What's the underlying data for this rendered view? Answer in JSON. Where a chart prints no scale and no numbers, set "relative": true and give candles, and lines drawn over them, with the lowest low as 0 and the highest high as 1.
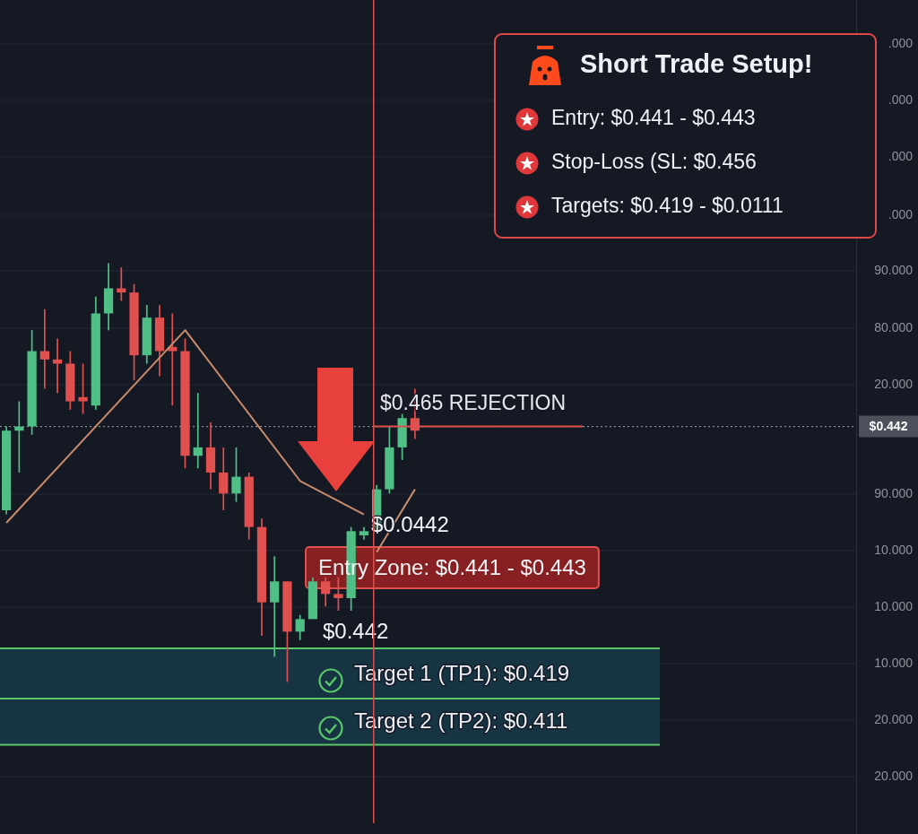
{
  "chart_data": {
    "type": "candlestick",
    "title": "Short Trade Setup!",
    "categories": [
      null,
      null,
      null,
      null,
      null,
      null,
      null,
      null,
      null,
      null,
      null,
      null,
      null,
      null,
      null,
      null,
      null,
      null,
      null,
      null,
      null,
      null,
      null,
      null,
      null,
      null,
      null,
      null,
      null,
      null,
      null,
      null,
      null
    ],
    "ohlc": [
      [
        0.41,
        0.61,
        0.4,
        0.6
      ],
      [
        0.6,
        0.67,
        0.5,
        0.61
      ],
      [
        0.61,
        0.84,
        0.59,
        0.79
      ],
      [
        0.79,
        0.89,
        0.7,
        0.77
      ],
      [
        0.77,
        0.82,
        0.69,
        0.76
      ],
      [
        0.76,
        0.79,
        0.65,
        0.67
      ],
      [
        0.68,
        0.76,
        0.64,
        0.67
      ],
      [
        0.66,
        0.92,
        0.65,
        0.88
      ],
      [
        0.88,
        1,
        0.84,
        0.94
      ],
      [
        0.94,
        0.99,
        0.91,
        0.93
      ],
      [
        0.93,
        0.95,
        0.72,
        0.78
      ],
      [
        0.78,
        0.9,
        0.76,
        0.87
      ],
      [
        0.87,
        0.9,
        0.73,
        0.79
      ],
      [
        0.8,
        0.88,
        0.66,
        0.79
      ],
      [
        0.79,
        0.82,
        0.51,
        0.54
      ],
      [
        0.54,
        0.69,
        0.51,
        0.56
      ],
      [
        0.56,
        0.62,
        0.46,
        0.5
      ],
      [
        0.5,
        0.56,
        0.41,
        0.45
      ],
      [
        0.45,
        0.56,
        0.43,
        0.49
      ],
      [
        0.49,
        0.5,
        0.34,
        0.37
      ],
      [
        0.37,
        0.39,
        0.11,
        0.19
      ],
      [
        0.19,
        0.3,
        0.06,
        0.24
      ],
      [
        0.24,
        0.24,
        0,
        0.12
      ],
      [
        0.12,
        0.16,
        0.1,
        0.15
      ],
      [
        0.15,
        0.25,
        0.15,
        0.24
      ],
      [
        0.24,
        0.25,
        0.18,
        0.21
      ],
      [
        0.21,
        0.25,
        0.17,
        0.2
      ],
      [
        0.2,
        0.37,
        0.17,
        0.36
      ],
      [
        0.35,
        0.37,
        0.34,
        0.36
      ],
      [
        0.36,
        0.47,
        0.36,
        0.46
      ],
      [
        0.46,
        0.61,
        0.45,
        0.56
      ],
      [
        0.56,
        0.64,
        0.53,
        0.63
      ],
      [
        0.63,
        0.7,
        0.58,
        0.6
      ]
    ],
    "colors": [
      "#4fbf86",
      "#4fbf86",
      "#4fbf86",
      "#e0504f",
      "#e0504f",
      "#e0504f",
      "#e0504f",
      "#4fbf86",
      "#4fbf86",
      "#e0504f",
      "#e0504f",
      "#4fbf86",
      "#e0504f",
      "#e0504f",
      "#e0504f",
      "#4fbf86",
      "#e0504f",
      "#e0504f",
      "#4fbf86",
      "#e0504f",
      "#e0504f",
      "#4fbf86",
      "#e0504f",
      "#4fbf86",
      "#4fbf86",
      "#e0504f",
      "#e0504f",
      "#4fbf86",
      "#4fbf86",
      "#4fbf86",
      "#4fbf86",
      "#4fbf86",
      "#e0504f"
    ],
    "series": [
      {
        "type": "line",
        "color": "#c98b6b",
        "values": [
          0.38,
          null,
          null,
          null,
          null,
          null,
          null,
          null,
          null,
          null,
          null,
          null,
          null,
          null,
          0.84,
          null,
          null,
          null,
          null,
          null,
          null,
          null,
          null,
          0.48,
          null,
          null,
          null,
          null,
          0.4,
          null,
          null,
          null,
          null
        ]
      },
      {
        "type": "line",
        "color": "#c98b6b",
        "values": [
          null,
          null,
          null,
          null,
          null,
          null,
          null,
          null,
          null,
          null,
          null,
          null,
          null,
          null,
          null,
          null,
          null,
          null,
          null,
          null,
          null,
          null,
          null,
          null,
          null,
          null,
          null,
          null,
          null,
          0.31,
          null,
          null,
          0.46
        ]
      }
    ],
    "relative": true,
    "grid": "y",
    "ref_lines": [
      {
        "axis": "y",
        "value": 0.61,
        "color": "#8a8f98",
        "line_style": "dotted"
      },
      {
        "axis": "y",
        "value": 0.61,
        "label": "$0.465 REJECTION",
        "color": "#e0504f",
        "line_style": "solid"
      },
      {
        "axis": "y",
        "value": 0.08,
        "color": "#5ac86a",
        "line_style": "solid"
      },
      {
        "axis": "y",
        "value": -0.04,
        "color": "#5ac86a",
        "line_style": "solid"
      },
      {
        "axis": "y",
        "value": -0.15,
        "color": "#5ac86a",
        "line_style": "solid"
      }
    ],
    "bands": [
      {
        "axis": "y",
        "from": 0.08,
        "to": -0.04,
        "label": "Target 1 (TP1): $0.419",
        "color": "#163442"
      },
      {
        "axis": "y",
        "from": -0.04,
        "to": -0.15,
        "label": "Target 2 (TP2): $0.411",
        "color": "#163442"
      }
    ],
    "annotations": [
      "Entry: $0.441 - $0.443",
      "Stop-Loss (SL: $0.456",
      "Targets: $0.419 - $0.0111",
      "$0.0442",
      "Entry Zone: $0.441 - $0.443",
      "$0.442",
      "$0.442",
      ".000",
      ".000",
      ".000",
      ".000",
      "90.000",
      "80.000",
      "20.000",
      "90.000",
      "10.000",
      "10.000",
      "10.000",
      "20.000",
      "20.000"
    ]
  }
}
